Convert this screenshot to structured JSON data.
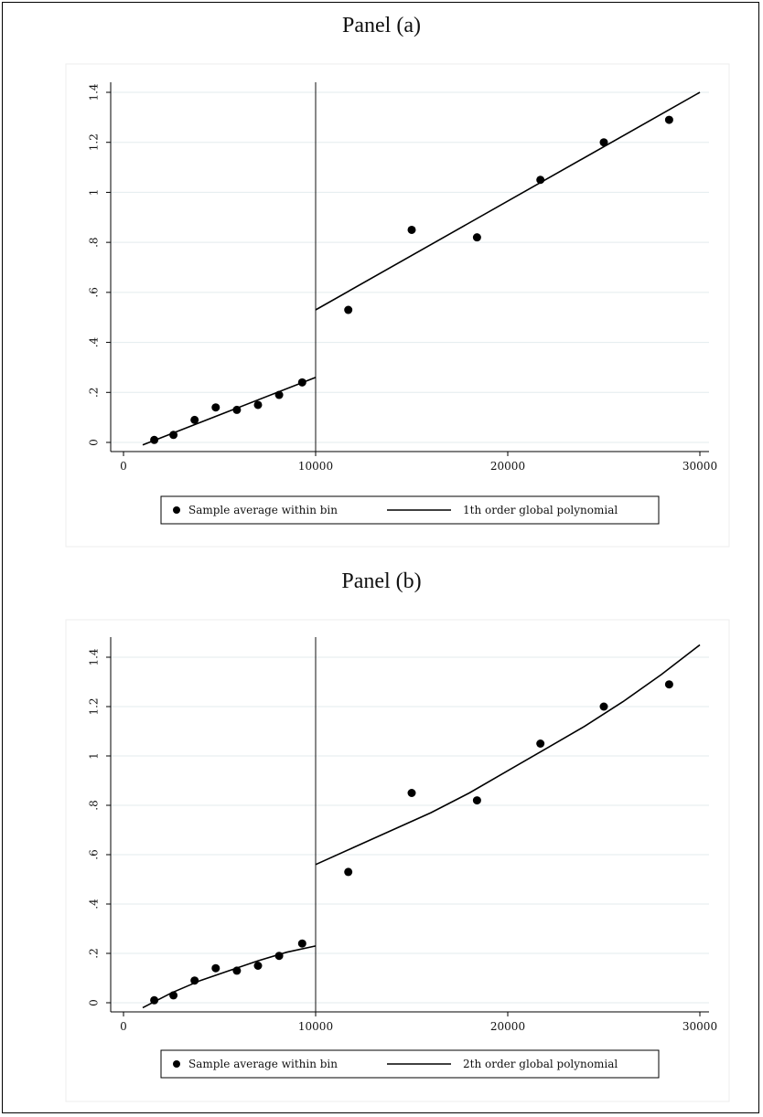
{
  "panels": [
    {
      "title": "Panel (a)"
    },
    {
      "title": "Panel (b)"
    }
  ],
  "chart_data": [
    {
      "type": "scatter",
      "title": "Panel (a)",
      "xlabel": "",
      "ylabel": "",
      "xlim": [
        0,
        30000
      ],
      "ylim": [
        0,
        1.4
      ],
      "xticks": [
        0,
        10000,
        20000,
        30000
      ],
      "xtick_labels": [
        "0",
        "10000",
        "20000",
        "30000"
      ],
      "yticks": [
        0,
        0.2,
        0.4,
        0.6,
        0.8,
        1,
        1.2,
        1.4
      ],
      "ytick_labels": [
        "0",
        ".2",
        ".4",
        ".6",
        ".8",
        "1",
        "1.2",
        "1.4"
      ],
      "grid": "horizontal",
      "cutoff": 10000,
      "series": [
        {
          "name": "Sample average within bin",
          "kind": "scatter",
          "x": [
            1600,
            2600,
            3700,
            4800,
            5900,
            7000,
            8100,
            9300,
            11700,
            15000,
            18400,
            21700,
            25000,
            28400
          ],
          "y": [
            0.01,
            0.03,
            0.09,
            0.14,
            0.13,
            0.15,
            0.19,
            0.24,
            0.53,
            0.85,
            0.82,
            1.05,
            1.2,
            1.29
          ]
        },
        {
          "name": "1th order global polynomial",
          "kind": "line",
          "segments": [
            {
              "x": [
                1000,
                10000
              ],
              "y": [
                -0.01,
                0.26
              ]
            },
            {
              "x": [
                10000,
                30000
              ],
              "y": [
                0.53,
                1.4
              ]
            }
          ]
        }
      ],
      "legend": {
        "position": "bottom",
        "entries": [
          "Sample average within bin",
          "1th order global polynomial"
        ]
      }
    },
    {
      "type": "scatter",
      "title": "Panel (b)",
      "xlabel": "",
      "ylabel": "",
      "xlim": [
        0,
        30000
      ],
      "ylim": [
        0,
        1.4
      ],
      "xticks": [
        0,
        10000,
        20000,
        30000
      ],
      "xtick_labels": [
        "0",
        "10000",
        "20000",
        "30000"
      ],
      "yticks": [
        0,
        0.2,
        0.4,
        0.6,
        0.8,
        1,
        1.2,
        1.4
      ],
      "ytick_labels": [
        "0",
        ".2",
        ".4",
        ".6",
        ".8",
        "1",
        "1.2",
        "1.4"
      ],
      "grid": "horizontal",
      "cutoff": 10000,
      "series": [
        {
          "name": "Sample average within bin",
          "kind": "scatter",
          "x": [
            1600,
            2600,
            3700,
            4800,
            5900,
            7000,
            8100,
            9300,
            11700,
            15000,
            18400,
            21700,
            25000,
            28400
          ],
          "y": [
            0.01,
            0.03,
            0.09,
            0.14,
            0.13,
            0.15,
            0.19,
            0.24,
            0.53,
            0.85,
            0.82,
            1.05,
            1.2,
            1.29
          ]
        },
        {
          "name": "2th order global polynomial",
          "kind": "line",
          "segments": [
            {
              "x": [
                1000,
                2500,
                4000,
                5500,
                7000,
                8500,
                10000
              ],
              "y": [
                -0.02,
                0.04,
                0.09,
                0.13,
                0.17,
                0.205,
                0.23
              ]
            },
            {
              "x": [
                10000,
                12000,
                14000,
                16000,
                18000,
                20000,
                22000,
                24000,
                26000,
                28000,
                30000
              ],
              "y": [
                0.56,
                0.63,
                0.7,
                0.77,
                0.85,
                0.94,
                1.03,
                1.12,
                1.22,
                1.33,
                1.45
              ]
            }
          ]
        }
      ],
      "legend": {
        "position": "bottom",
        "entries": [
          "Sample average within bin",
          "2th order global polynomial"
        ]
      }
    }
  ]
}
